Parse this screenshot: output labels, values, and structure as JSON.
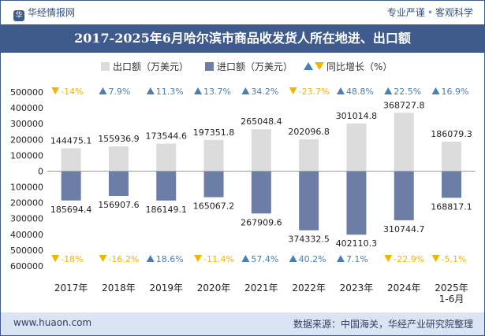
{
  "header": {
    "brand_name": "华经情报网",
    "tag_left": "专业严谨",
    "tag_right": "客观科学"
  },
  "footer": {
    "url": "www.huaon.com",
    "source": "数据来源：中国海关，华经产业研究院整理"
  },
  "colors": {
    "export_bar": "#dcdcdc",
    "import_bar": "#6d7ea6",
    "triangle_up": "#4a7fb5",
    "triangle_down": "#f2b600",
    "title_bg": "#3f5a8c",
    "footer_bg": "#dbe4f2"
  },
  "chart_data": {
    "type": "bar",
    "title": "2017-2025年6月哈尔滨市商品收发货人所在地进、出口额",
    "categories": [
      "2017年",
      "2018年",
      "2019年",
      "2020年",
      "2021年",
      "2022年",
      "2023年",
      "2024年",
      "2025年\n1-6月"
    ],
    "legend": {
      "export": "出口额（万美元）",
      "import": "进口额（万美元）",
      "yoy": "同比增长（%）",
      "placement": "top-center"
    },
    "series": [
      {
        "name": "出口额（万美元）",
        "values": [
          144475.1,
          155936.9,
          173544.6,
          197351.8,
          265048.4,
          202096.8,
          301014.8,
          368727.8,
          186079.3
        ],
        "labels": [
          "144475.1",
          "155936.9",
          "173544.6",
          "197351.8",
          "265048.4",
          "202096.8",
          "301014.8",
          "368727.8",
          "186079.3"
        ]
      },
      {
        "name": "进口额（万美元）",
        "values": [
          -185694.4,
          -156907.6,
          -186149.1,
          -165067.2,
          -267909.6,
          -374332.5,
          -402110.3,
          -310744.7,
          -168817.1
        ],
        "labels": [
          "185694.4",
          "156907.6",
          "186149.1",
          "165067.2",
          "267909.6",
          "374332.5",
          "402110.3",
          "310744.7",
          "168817.1"
        ]
      }
    ],
    "export_yoy": {
      "values": [
        -14,
        7.9,
        11.3,
        13.7,
        34.2,
        -23.7,
        48.8,
        22.5,
        16.9
      ],
      "labels": [
        "-14%",
        "7.9%",
        "11.3%",
        "13.7%",
        "34.2%",
        "-23.7%",
        "48.8%",
        "22.5%",
        "16.9%"
      ]
    },
    "import_yoy": {
      "values": [
        -18,
        -16.2,
        18.6,
        -11.4,
        57.4,
        40.2,
        7.1,
        -22.9,
        -5.1
      ],
      "labels": [
        "-18%",
        "-16.2%",
        "18.6%",
        "-11.4%",
        "57.4%",
        "40.2%",
        "7.1%",
        "-22.9%",
        "-5.1%"
      ]
    },
    "y_axis": {
      "ylim": [
        -600000,
        500000
      ],
      "ticks": [
        500000,
        400000,
        300000,
        200000,
        100000,
        0,
        -100000,
        -200000,
        -300000,
        -400000,
        -500000,
        -600000
      ],
      "tick_labels": [
        "500000",
        "400000",
        "300000",
        "200000",
        "100000",
        "0",
        "100000",
        "200000",
        "300000",
        "400000",
        "500000",
        "600000"
      ]
    },
    "grid": false
  }
}
